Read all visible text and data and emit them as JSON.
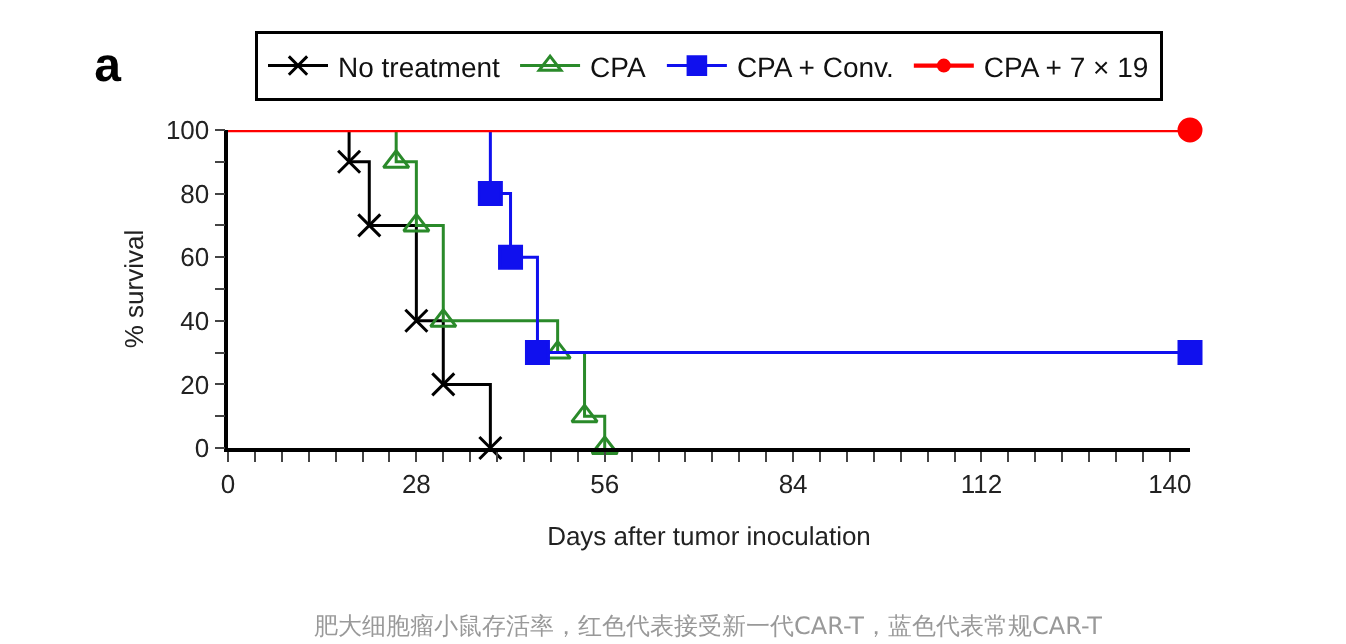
{
  "chart_data": {
    "type": "step",
    "title": "a",
    "xlabel": "Days after tumor inoculation",
    "ylabel": "% survival",
    "xlim": [
      0,
      143
    ],
    "ylim": [
      0,
      100
    ],
    "xticks": [
      0,
      {
        "value": 4,
        "label": null
      },
      {
        "value": 8,
        "label": null
      },
      {
        "value": 12,
        "label": null
      },
      {
        "value": 16,
        "label": null
      },
      {
        "value": 20,
        "label": null
      },
      {
        "value": 24,
        "label": null
      },
      28,
      {
        "value": 32,
        "label": null
      },
      {
        "value": 36,
        "label": null
      },
      {
        "value": 40,
        "label": null
      },
      {
        "value": 44,
        "label": null
      },
      {
        "value": 48,
        "label": null
      },
      {
        "value": 52,
        "label": null
      },
      56,
      {
        "value": 60,
        "label": null
      },
      {
        "value": 64,
        "label": null
      },
      {
        "value": 68,
        "label": null
      },
      {
        "value": 72,
        "label": null
      },
      {
        "value": 76,
        "label": null
      },
      {
        "value": 80,
        "label": null
      },
      84,
      {
        "value": 88,
        "label": null
      },
      {
        "value": 92,
        "label": null
      },
      {
        "value": 96,
        "label": null
      },
      {
        "value": 100,
        "label": null
      },
      {
        "value": 104,
        "label": null
      },
      {
        "value": 108,
        "label": null
      },
      112,
      {
        "value": 116,
        "label": null
      },
      {
        "value": 120,
        "label": null
      },
      {
        "value": 124,
        "label": null
      },
      {
        "value": 128,
        "label": null
      },
      {
        "value": 132,
        "label": null
      },
      {
        "value": 136,
        "label": null
      },
      140
    ],
    "yticks": [
      0,
      {
        "value": 10,
        "label": null
      },
      20,
      {
        "value": 30,
        "label": null
      },
      40,
      {
        "value": 50,
        "label": null
      },
      60,
      {
        "value": 70,
        "label": null
      },
      80,
      {
        "value": 90,
        "label": null
      },
      100
    ],
    "legend": "top",
    "series": [
      {
        "name": "No treatment",
        "color": "#000000",
        "marker": "cross",
        "x": [
          0,
          18,
          21,
          28,
          32,
          39
        ],
        "values": [
          100,
          90,
          70,
          40,
          20,
          0
        ]
      },
      {
        "name": "CPA",
        "color": "#2a8a2a",
        "marker": "triangle",
        "x": [
          0,
          25,
          28,
          32,
          49,
          53,
          56
        ],
        "values": [
          100,
          90,
          70,
          40,
          30,
          10,
          0
        ]
      },
      {
        "name": "CPA + Conv.",
        "color": "#1010ee",
        "marker": "square",
        "x": [
          0,
          39,
          42,
          46,
          143
        ],
        "values": [
          100,
          80,
          60,
          30,
          30
        ]
      },
      {
        "name": "CPA + 7 × 19",
        "color": "#ff0000",
        "marker": "circle",
        "x": [
          0,
          143
        ],
        "values": [
          100,
          100
        ]
      }
    ],
    "annotations": [
      "肥大细胞瘤小鼠存活率，红色代表接受新一代CAR-T，蓝色代表常规CAR-T"
    ]
  }
}
